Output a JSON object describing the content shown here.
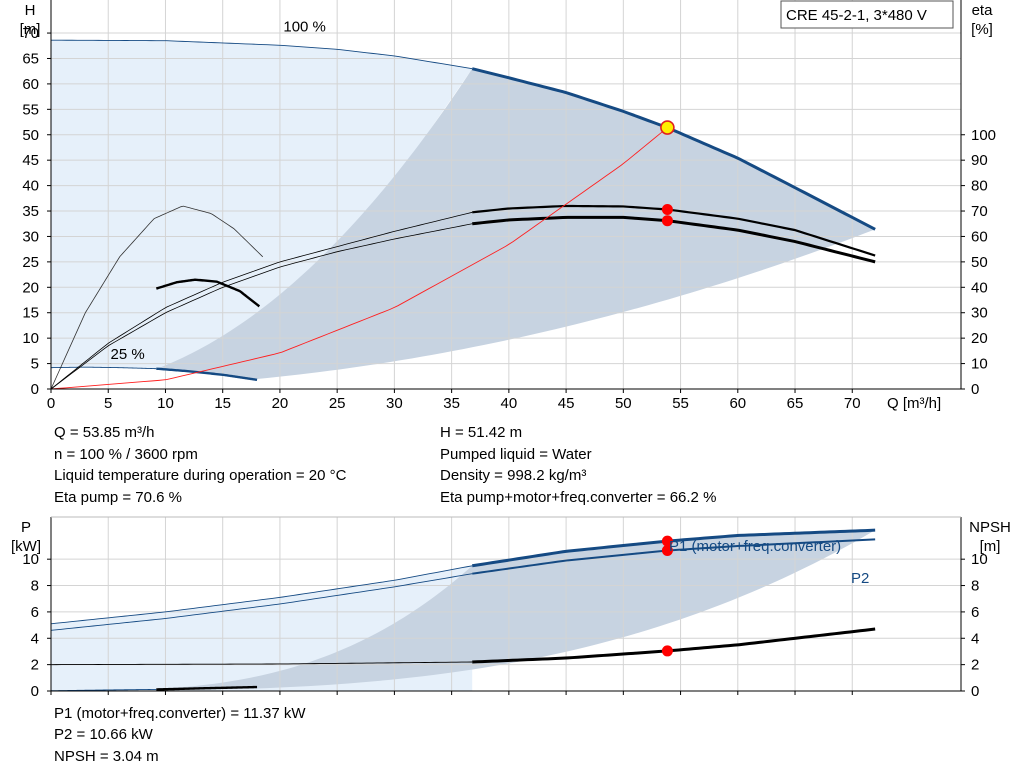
{
  "title_box": "CRE 45-2-1, 3*480 V",
  "colors": {
    "pump_curve": "#154a83",
    "envelope_light": "#e6f0fa",
    "envelope_dark": "#c7d3e1",
    "efficiency": "#000000",
    "system_curve": "#ff2020",
    "duty_point_fill": "#ffee00",
    "duty_point_stroke": "#e02020",
    "marker": "#ff0000"
  },
  "chart_data": [
    {
      "type": "line",
      "title": "",
      "xlabel": "Q [m³/h]",
      "ylabel": "H [m]",
      "ylabel_lines": [
        "H",
        "[m]"
      ],
      "y2label_lines": [
        "eta",
        "[%]"
      ],
      "xlim": [
        0,
        79.5
      ],
      "ylim": [
        0,
        76.5
      ],
      "y2lim": [
        0,
        153
      ],
      "xticks": [
        0,
        5,
        10,
        15,
        20,
        25,
        30,
        35,
        40,
        45,
        50,
        55,
        60,
        65,
        70
      ],
      "yticks": [
        0,
        5,
        10,
        15,
        20,
        25,
        30,
        35,
        40,
        45,
        50,
        55,
        60,
        65,
        70
      ],
      "y2ticks": [
        0,
        10,
        20,
        30,
        40,
        50,
        60,
        70,
        80,
        90,
        100
      ],
      "grid": true,
      "curve_labels": [
        "100 %",
        "25 %"
      ],
      "series": [
        {
          "name": "100 %",
          "role": "head_100",
          "x": [
            0,
            10,
            20,
            25,
            30,
            36.8,
            40,
            45,
            50,
            53.85,
            60,
            65,
            72
          ],
          "y": [
            68.6,
            68.5,
            67.6,
            66.8,
            65.5,
            63.0,
            61.2,
            58.3,
            54.6,
            51.4,
            45.4,
            39.6,
            31.4
          ]
        },
        {
          "name": "25 %",
          "role": "head_25",
          "x": [
            0,
            3,
            6,
            9.2,
            12,
            15,
            18
          ],
          "y": [
            4.2,
            4.3,
            4.2,
            4.0,
            3.5,
            2.8,
            1.8
          ]
        },
        {
          "name": "Eta pump+motor+freq.converter",
          "role": "eta_total",
          "axis": "y2",
          "x": [
            0,
            5,
            10,
            15,
            20,
            25,
            30,
            36.8,
            40,
            45,
            50,
            53.85,
            60,
            65,
            72
          ],
          "y": [
            0,
            17,
            30,
            40,
            48,
            54,
            59,
            65,
            66.5,
            67.5,
            67.5,
            66.2,
            62.5,
            58,
            50
          ]
        },
        {
          "name": "Eta pump",
          "role": "eta_pump",
          "axis": "y2",
          "x": [
            0,
            5,
            10,
            15,
            20,
            25,
            30,
            36.8,
            40,
            45,
            50,
            53.85,
            60,
            65,
            72
          ],
          "y": [
            0,
            18,
            32,
            42,
            50,
            56,
            62,
            69.5,
            71,
            72,
            71.8,
            70.6,
            67,
            62.5,
            52.5
          ]
        },
        {
          "name": "Eta 25% (pump)",
          "role": "eta25_pump",
          "axis": "y2",
          "x": [
            0,
            3,
            6,
            9,
            11.5,
            14,
            16,
            18.5
          ],
          "y": [
            0,
            30,
            52,
            67,
            72,
            69,
            63,
            52
          ]
        },
        {
          "name": "Eta 25% (total)",
          "role": "eta25_total",
          "axis": "y2",
          "x": [
            9.2,
            11,
            12.6,
            14.5,
            16.5,
            18.2
          ],
          "y": [
            39.5,
            42,
            43,
            42.2,
            38.5,
            32.5
          ]
        },
        {
          "name": "System curve",
          "role": "system",
          "x": [
            0,
            10,
            20,
            30,
            40,
            50,
            53.85
          ],
          "y": [
            0,
            1.8,
            7.1,
            16.0,
            28.4,
            44.3,
            51.4
          ]
        }
      ],
      "points": [
        {
          "x": 53.85,
          "y": 51.42,
          "role": "duty_point"
        },
        {
          "x": 53.85,
          "y2": 70.6,
          "role": "eta_pump_marker"
        },
        {
          "x": 53.85,
          "y2": 66.2,
          "role": "eta_total_marker"
        }
      ],
      "x_at_label": "Q [m³/h]"
    },
    {
      "type": "line",
      "title": "",
      "xlabel": "",
      "ylabel_lines": [
        "P",
        "[kW]"
      ],
      "y2label_lines": [
        "NPSH",
        "[m]"
      ],
      "xlim": [
        0,
        79.5
      ],
      "ylim": [
        0,
        13.2
      ],
      "y2lim": [
        0,
        13.2
      ],
      "yticks": [
        0,
        2,
        4,
        6,
        8,
        10
      ],
      "y2ticks": [
        0,
        2,
        4,
        6,
        8,
        10
      ],
      "grid": true,
      "series": [
        {
          "name": "P1 (motor+freq.converter)",
          "role": "p1",
          "x": [
            0,
            10,
            20,
            30,
            36.8,
            45,
            53.85,
            60,
            72
          ],
          "y": [
            5.1,
            6.0,
            7.1,
            8.4,
            9.5,
            10.6,
            11.37,
            11.8,
            12.2
          ]
        },
        {
          "name": "P2",
          "role": "p2",
          "x": [
            0,
            10,
            20,
            30,
            36.8,
            45,
            53.85,
            60,
            72
          ],
          "y": [
            4.6,
            5.5,
            6.6,
            7.9,
            8.9,
            9.9,
            10.66,
            11.0,
            11.5
          ]
        },
        {
          "name": "NPSH",
          "role": "npsh",
          "axis": "y2",
          "x": [
            0,
            20,
            36.8,
            45,
            53.85,
            60,
            72
          ],
          "y": [
            2.0,
            2.05,
            2.2,
            2.5,
            3.04,
            3.5,
            4.7
          ]
        },
        {
          "name": "P 25%",
          "role": "p25",
          "x": [
            0,
            5,
            9.2,
            13,
            18
          ],
          "y": [
            0.02,
            0.08,
            0.12,
            0.2,
            0.3
          ]
        }
      ],
      "points": [
        {
          "x": 53.85,
          "y": 11.37,
          "role": "p1_marker"
        },
        {
          "x": 53.85,
          "y": 10.66,
          "role": "p2_marker"
        },
        {
          "x": 53.85,
          "y2": 3.04,
          "role": "npsh_marker"
        }
      ]
    }
  ],
  "info_top": {
    "q": "Q = 53.85 m³/h",
    "n": "n = 100 % / 3600 rpm",
    "temp": "Liquid temperature during operation = 20 °C",
    "eta_pump": "Eta pump = 70.6 %",
    "h": "H = 51.42 m",
    "liquid": "Pumped liquid = Water",
    "density": "Density = 998.2 kg/m³",
    "eta_total": "Eta pump+motor+freq.converter = 66.2 %"
  },
  "info_bottom": {
    "p1": "P1 (motor+freq.converter) = 11.37 kW",
    "p2": "P2 = 10.66 kW",
    "npsh": "NPSH = 3.04 m"
  }
}
